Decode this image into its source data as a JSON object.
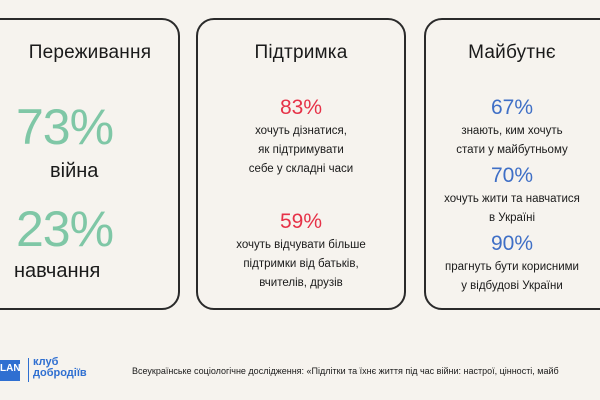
{
  "cards": [
    {
      "title": "Переживання",
      "stats": [
        {
          "value": "73%",
          "label": "війна"
        },
        {
          "value": "23%",
          "label": "навчання"
        }
      ]
    },
    {
      "title": "Підтримка",
      "stats": [
        {
          "value": "83%",
          "lines": [
            "хочуть дізнатися,",
            "як підтримувати",
            "себе у складні часи"
          ]
        },
        {
          "value": "59%",
          "lines": [
            "хочуть відчувати більше",
            "підтримки від батьків,",
            "вчителів, друзів"
          ]
        }
      ]
    },
    {
      "title": "Майбутнє",
      "stats": [
        {
          "value": "67%",
          "lines": [
            "знають, ким хочуть",
            "стати у майбутньому"
          ]
        },
        {
          "value": "70%",
          "lines": [
            "хочуть жити та навчатися",
            "в Україні"
          ]
        },
        {
          "value": "90%",
          "lines": [
            "прагнуть бути корисними",
            "у відбудові України"
          ]
        }
      ]
    }
  ],
  "footer": {
    "logo_text": "LAN",
    "logo_sub": "",
    "club_line1": "клуб",
    "club_line2": "добродіїв",
    "note": "Всеукраїнське соціологічне дослідження: «Підлітки та їхнє життя під час війни: настрої, цінності, майб"
  },
  "colors": {
    "background": "#f6f3ee",
    "green": "#7fc7a6",
    "red": "#e63248",
    "blue": "#3f6fc6",
    "brand_blue": "#2f6fd1"
  }
}
